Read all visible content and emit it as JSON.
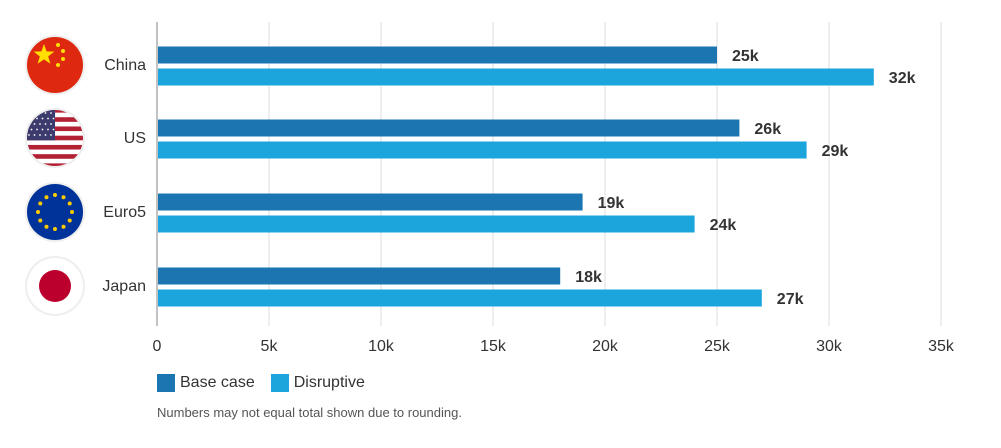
{
  "chart_data": {
    "type": "bar",
    "orientation": "horizontal",
    "categories": [
      "China",
      "US",
      "Euro5",
      "Japan"
    ],
    "series": [
      {
        "name": "Base case",
        "values": [
          25,
          26,
          19,
          18
        ],
        "labels": [
          "25k",
          "26k",
          "19k",
          "18k"
        ],
        "color": "#1a75b0"
      },
      {
        "name": "Disruptive",
        "values": [
          32,
          29,
          24,
          27
        ],
        "labels": [
          "32k",
          "29k",
          "24k",
          "27k"
        ],
        "color": "#1ca4dd"
      }
    ],
    "xlim": [
      0,
      35
    ],
    "xticks": [
      0,
      5,
      10,
      15,
      20,
      25,
      30,
      35
    ],
    "xtick_labels": [
      "0",
      "5k",
      "10k",
      "15k",
      "20k",
      "25k",
      "30k",
      "35k"
    ],
    "grid": "vertical",
    "legend_position": "bottom-left"
  },
  "flag_icons": [
    "china-flag-icon",
    "us-flag-icon",
    "eu-flag-icon",
    "japan-flag-icon"
  ],
  "footnote": "Numbers may not equal total shown due to rounding."
}
